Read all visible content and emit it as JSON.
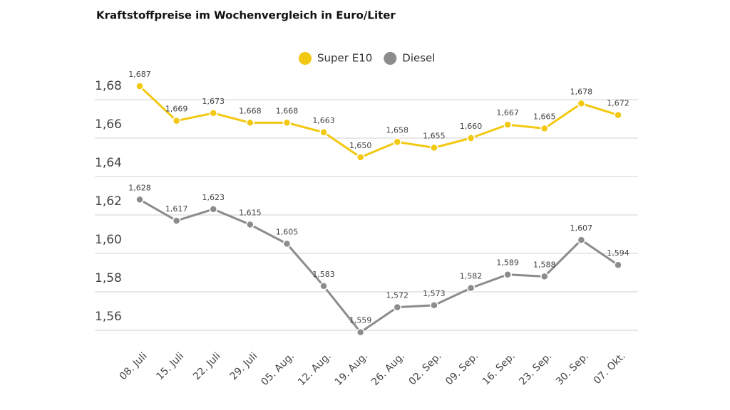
{
  "chart_data": {
    "type": "line",
    "title": "Kraftstoffpreise im Wochenvergleich in Euro/Liter",
    "categories": [
      "08. Juli",
      "15. Juli",
      "22. Juli",
      "29. Juli",
      "05. Aug.",
      "12. Aug.",
      "19. Aug.",
      "26. Aug.",
      "02. Sep.",
      "09. Sep.",
      "16. Sep.",
      "23. Sep.",
      "30. Sep.",
      "07. Okt."
    ],
    "series": [
      {
        "name": "Super E10",
        "color": "#f2c811",
        "values": [
          1.687,
          1.669,
          1.673,
          1.668,
          1.668,
          1.663,
          1.65,
          1.658,
          1.655,
          1.66,
          1.667,
          1.665,
          1.678,
          1.672
        ],
        "value_labels": [
          "1,687",
          "1,669",
          "1,673",
          "1,668",
          "1,668",
          "1,663",
          "1,650",
          "1,658",
          "1,655",
          "1,660",
          "1,667",
          "1,665",
          "1,678",
          "1,672"
        ]
      },
      {
        "name": "Diesel",
        "color": "#8c8c8c",
        "values": [
          1.628,
          1.617,
          1.623,
          1.615,
          1.605,
          1.583,
          1.559,
          1.572,
          1.573,
          1.582,
          1.589,
          1.588,
          1.607,
          1.594
        ],
        "value_labels": [
          "1,628",
          "1,617",
          "1,623",
          "1,615",
          "1,605",
          "1,583",
          "1,559",
          "1,572",
          "1,573",
          "1,582",
          "1,589",
          "1,588",
          "1,607",
          "1,594"
        ]
      }
    ],
    "ylim": [
      1.55,
      1.69
    ],
    "yticks": [
      {
        "value": 1.56,
        "label": "1,56"
      },
      {
        "value": 1.58,
        "label": "1,58"
      },
      {
        "value": 1.6,
        "label": "1,60"
      },
      {
        "value": 1.62,
        "label": "1,62"
      },
      {
        "value": 1.64,
        "label": "1,64"
      },
      {
        "value": 1.66,
        "label": "1,66"
      },
      {
        "value": 1.68,
        "label": "1,68"
      }
    ],
    "grid": true,
    "legend": "top"
  }
}
